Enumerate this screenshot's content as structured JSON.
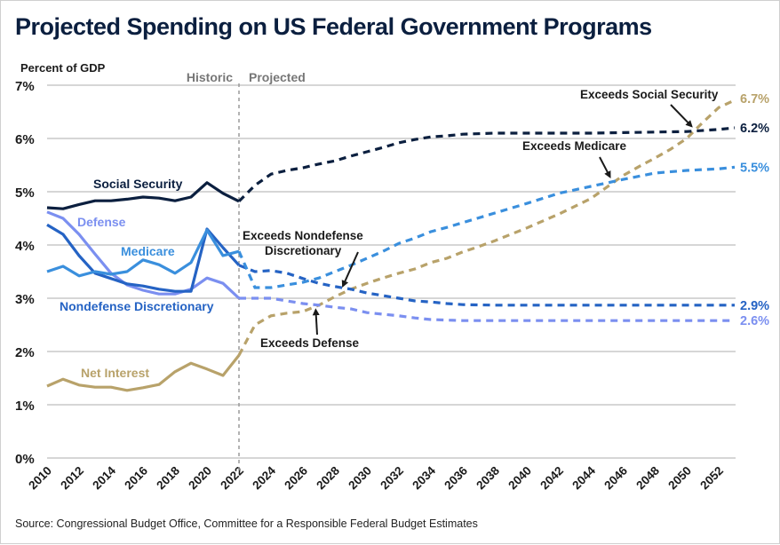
{
  "title": "Projected Spending on US Federal Government Programs",
  "source": "Source: Congressional Budget Office, Committee for a Responsible Federal Budget Estimates",
  "chart_data": {
    "type": "line",
    "title": "Projected Spending on US Federal Government Programs",
    "ylabel": "Percent of GDP",
    "xlabel": "",
    "ylim": [
      0,
      7
    ],
    "xlim": [
      2010,
      2053
    ],
    "y_ticks": [
      0,
      1,
      2,
      3,
      4,
      5,
      6,
      7
    ],
    "y_tick_labels": [
      "0%",
      "1%",
      "2%",
      "3%",
      "4%",
      "5%",
      "6%",
      "7%"
    ],
    "x_ticks": [
      2010,
      2012,
      2014,
      2016,
      2018,
      2020,
      2022,
      2024,
      2026,
      2028,
      2030,
      2032,
      2034,
      2036,
      2038,
      2040,
      2042,
      2044,
      2046,
      2048,
      2050,
      2052
    ],
    "x_tick_labels": [
      "2010",
      "2012",
      "2014",
      "2016",
      "2018",
      "2020",
      "2022",
      "2024",
      "2026",
      "2028",
      "2030",
      "2032",
      "2034",
      "2036",
      "2038",
      "2040",
      "2042",
      "2044",
      "2046",
      "2048",
      "2050",
      "2052"
    ],
    "grid": true,
    "split_year": 2022,
    "phase_labels": {
      "historic": "Historic",
      "projected": "Projected"
    },
    "series": [
      {
        "name": "Social Security",
        "color": "#0b1f3f",
        "end_label": "6.2%",
        "historic": {
          "x": [
            2010,
            2011,
            2012,
            2013,
            2014,
            2015,
            2016,
            2017,
            2018,
            2019,
            2020,
            2021,
            2022
          ],
          "y": [
            4.7,
            4.68,
            4.76,
            4.83,
            4.83,
            4.86,
            4.9,
            4.88,
            4.83,
            4.9,
            5.17,
            4.97,
            4.82
          ]
        },
        "projected": {
          "x": [
            2022,
            2023,
            2024,
            2025,
            2026,
            2027,
            2028,
            2029,
            2030,
            2031,
            2032,
            2033,
            2034,
            2035,
            2036,
            2038,
            2040,
            2042,
            2044,
            2046,
            2048,
            2050,
            2052,
            2053
          ],
          "y": [
            4.82,
            5.12,
            5.33,
            5.4,
            5.45,
            5.52,
            5.58,
            5.67,
            5.75,
            5.83,
            5.92,
            5.98,
            6.03,
            6.05,
            6.08,
            6.1,
            6.1,
            6.1,
            6.1,
            6.11,
            6.12,
            6.13,
            6.17,
            6.2
          ]
        }
      },
      {
        "name": "Medicare",
        "color": "#3a8fdd",
        "end_label": "5.5%",
        "historic": {
          "x": [
            2010,
            2011,
            2012,
            2013,
            2014,
            2015,
            2016,
            2017,
            2018,
            2019,
            2020,
            2021,
            2022
          ],
          "y": [
            3.5,
            3.6,
            3.42,
            3.5,
            3.45,
            3.5,
            3.72,
            3.63,
            3.47,
            3.67,
            4.28,
            3.8,
            3.88
          ]
        },
        "projected": {
          "x": [
            2022,
            2023,
            2024,
            2025,
            2026,
            2027,
            2028,
            2029,
            2030,
            2031,
            2032,
            2033,
            2034,
            2035,
            2036,
            2038,
            2040,
            2042,
            2044,
            2046,
            2048,
            2050,
            2052,
            2053
          ],
          "y": [
            3.88,
            3.2,
            3.2,
            3.25,
            3.3,
            3.38,
            3.5,
            3.62,
            3.75,
            3.88,
            4.03,
            4.13,
            4.25,
            4.33,
            4.42,
            4.6,
            4.78,
            4.97,
            5.1,
            5.23,
            5.35,
            5.4,
            5.43,
            5.46
          ]
        }
      },
      {
        "name": "Defense",
        "color": "#7b8ff0",
        "end_label": "2.6%",
        "historic": {
          "x": [
            2010,
            2011,
            2012,
            2013,
            2014,
            2015,
            2016,
            2017,
            2018,
            2019,
            2020,
            2021,
            2022
          ],
          "y": [
            4.62,
            4.5,
            4.2,
            3.83,
            3.47,
            3.25,
            3.15,
            3.08,
            3.08,
            3.17,
            3.38,
            3.28,
            3.0
          ]
        },
        "projected": {
          "x": [
            2022,
            2023,
            2024,
            2025,
            2026,
            2027,
            2028,
            2029,
            2030,
            2031,
            2032,
            2033,
            2034,
            2036,
            2038,
            2040,
            2044,
            2048,
            2053
          ],
          "y": [
            3.0,
            3.0,
            3.0,
            2.95,
            2.9,
            2.87,
            2.83,
            2.8,
            2.73,
            2.7,
            2.67,
            2.63,
            2.6,
            2.58,
            2.58,
            2.58,
            2.58,
            2.58,
            2.58
          ]
        }
      },
      {
        "name": "Nondefense Discretionary",
        "color": "#2563c4",
        "end_label": "2.9%",
        "historic": {
          "x": [
            2010,
            2011,
            2012,
            2013,
            2014,
            2015,
            2016,
            2017,
            2018,
            2019,
            2020,
            2021,
            2022
          ],
          "y": [
            4.38,
            4.2,
            3.8,
            3.47,
            3.37,
            3.27,
            3.23,
            3.17,
            3.13,
            3.13,
            4.3,
            3.95,
            3.62
          ]
        },
        "projected": {
          "x": [
            2022,
            2023,
            2024,
            2025,
            2026,
            2027,
            2028,
            2029,
            2030,
            2031,
            2032,
            2033,
            2034,
            2035,
            2036,
            2038,
            2044,
            2048,
            2053
          ],
          "y": [
            3.62,
            3.5,
            3.52,
            3.47,
            3.37,
            3.28,
            3.22,
            3.17,
            3.1,
            3.05,
            3.0,
            2.95,
            2.93,
            2.9,
            2.88,
            2.87,
            2.87,
            2.87,
            2.87
          ]
        }
      },
      {
        "name": "Net Interest",
        "color": "#b8a26a",
        "end_label": "6.7%",
        "historic": {
          "x": [
            2010,
            2011,
            2012,
            2013,
            2014,
            2015,
            2016,
            2017,
            2018,
            2019,
            2020,
            2021,
            2022
          ],
          "y": [
            1.35,
            1.48,
            1.37,
            1.33,
            1.33,
            1.27,
            1.32,
            1.38,
            1.62,
            1.78,
            1.67,
            1.55,
            1.93
          ]
        },
        "projected": {
          "x": [
            2022,
            2023,
            2024,
            2025,
            2026,
            2027,
            2028,
            2029,
            2030,
            2031,
            2032,
            2033,
            2034,
            2035,
            2036,
            2037,
            2038,
            2040,
            2042,
            2044,
            2046,
            2047,
            2048,
            2049,
            2050,
            2051,
            2052,
            2053
          ],
          "y": [
            1.93,
            2.5,
            2.67,
            2.72,
            2.75,
            2.87,
            3.03,
            3.17,
            3.28,
            3.38,
            3.47,
            3.55,
            3.67,
            3.75,
            3.87,
            3.97,
            4.08,
            4.32,
            4.58,
            4.87,
            5.3,
            5.47,
            5.63,
            5.8,
            6.0,
            6.3,
            6.58,
            6.72
          ]
        }
      }
    ],
    "annotations": [
      {
        "text": "Exceeds Defense",
        "lines": [
          "Exceeds Defense"
        ],
        "x": 2026.8,
        "y": 2.88
      },
      {
        "text": "Exceeds Nondefense Discretionary",
        "lines": [
          "Exceeds Nondefense",
          "Discretionary"
        ],
        "x": 2028.5,
        "y": 3.13
      },
      {
        "text": "Exceeds Medicare",
        "lines": [
          "Exceeds Medicare"
        ],
        "x": 2045.2,
        "y": 5.18
      },
      {
        "text": "Exceeds Social Security",
        "lines": [
          "Exceeds Social Security"
        ],
        "x": 2050.3,
        "y": 6.13
      }
    ]
  }
}
